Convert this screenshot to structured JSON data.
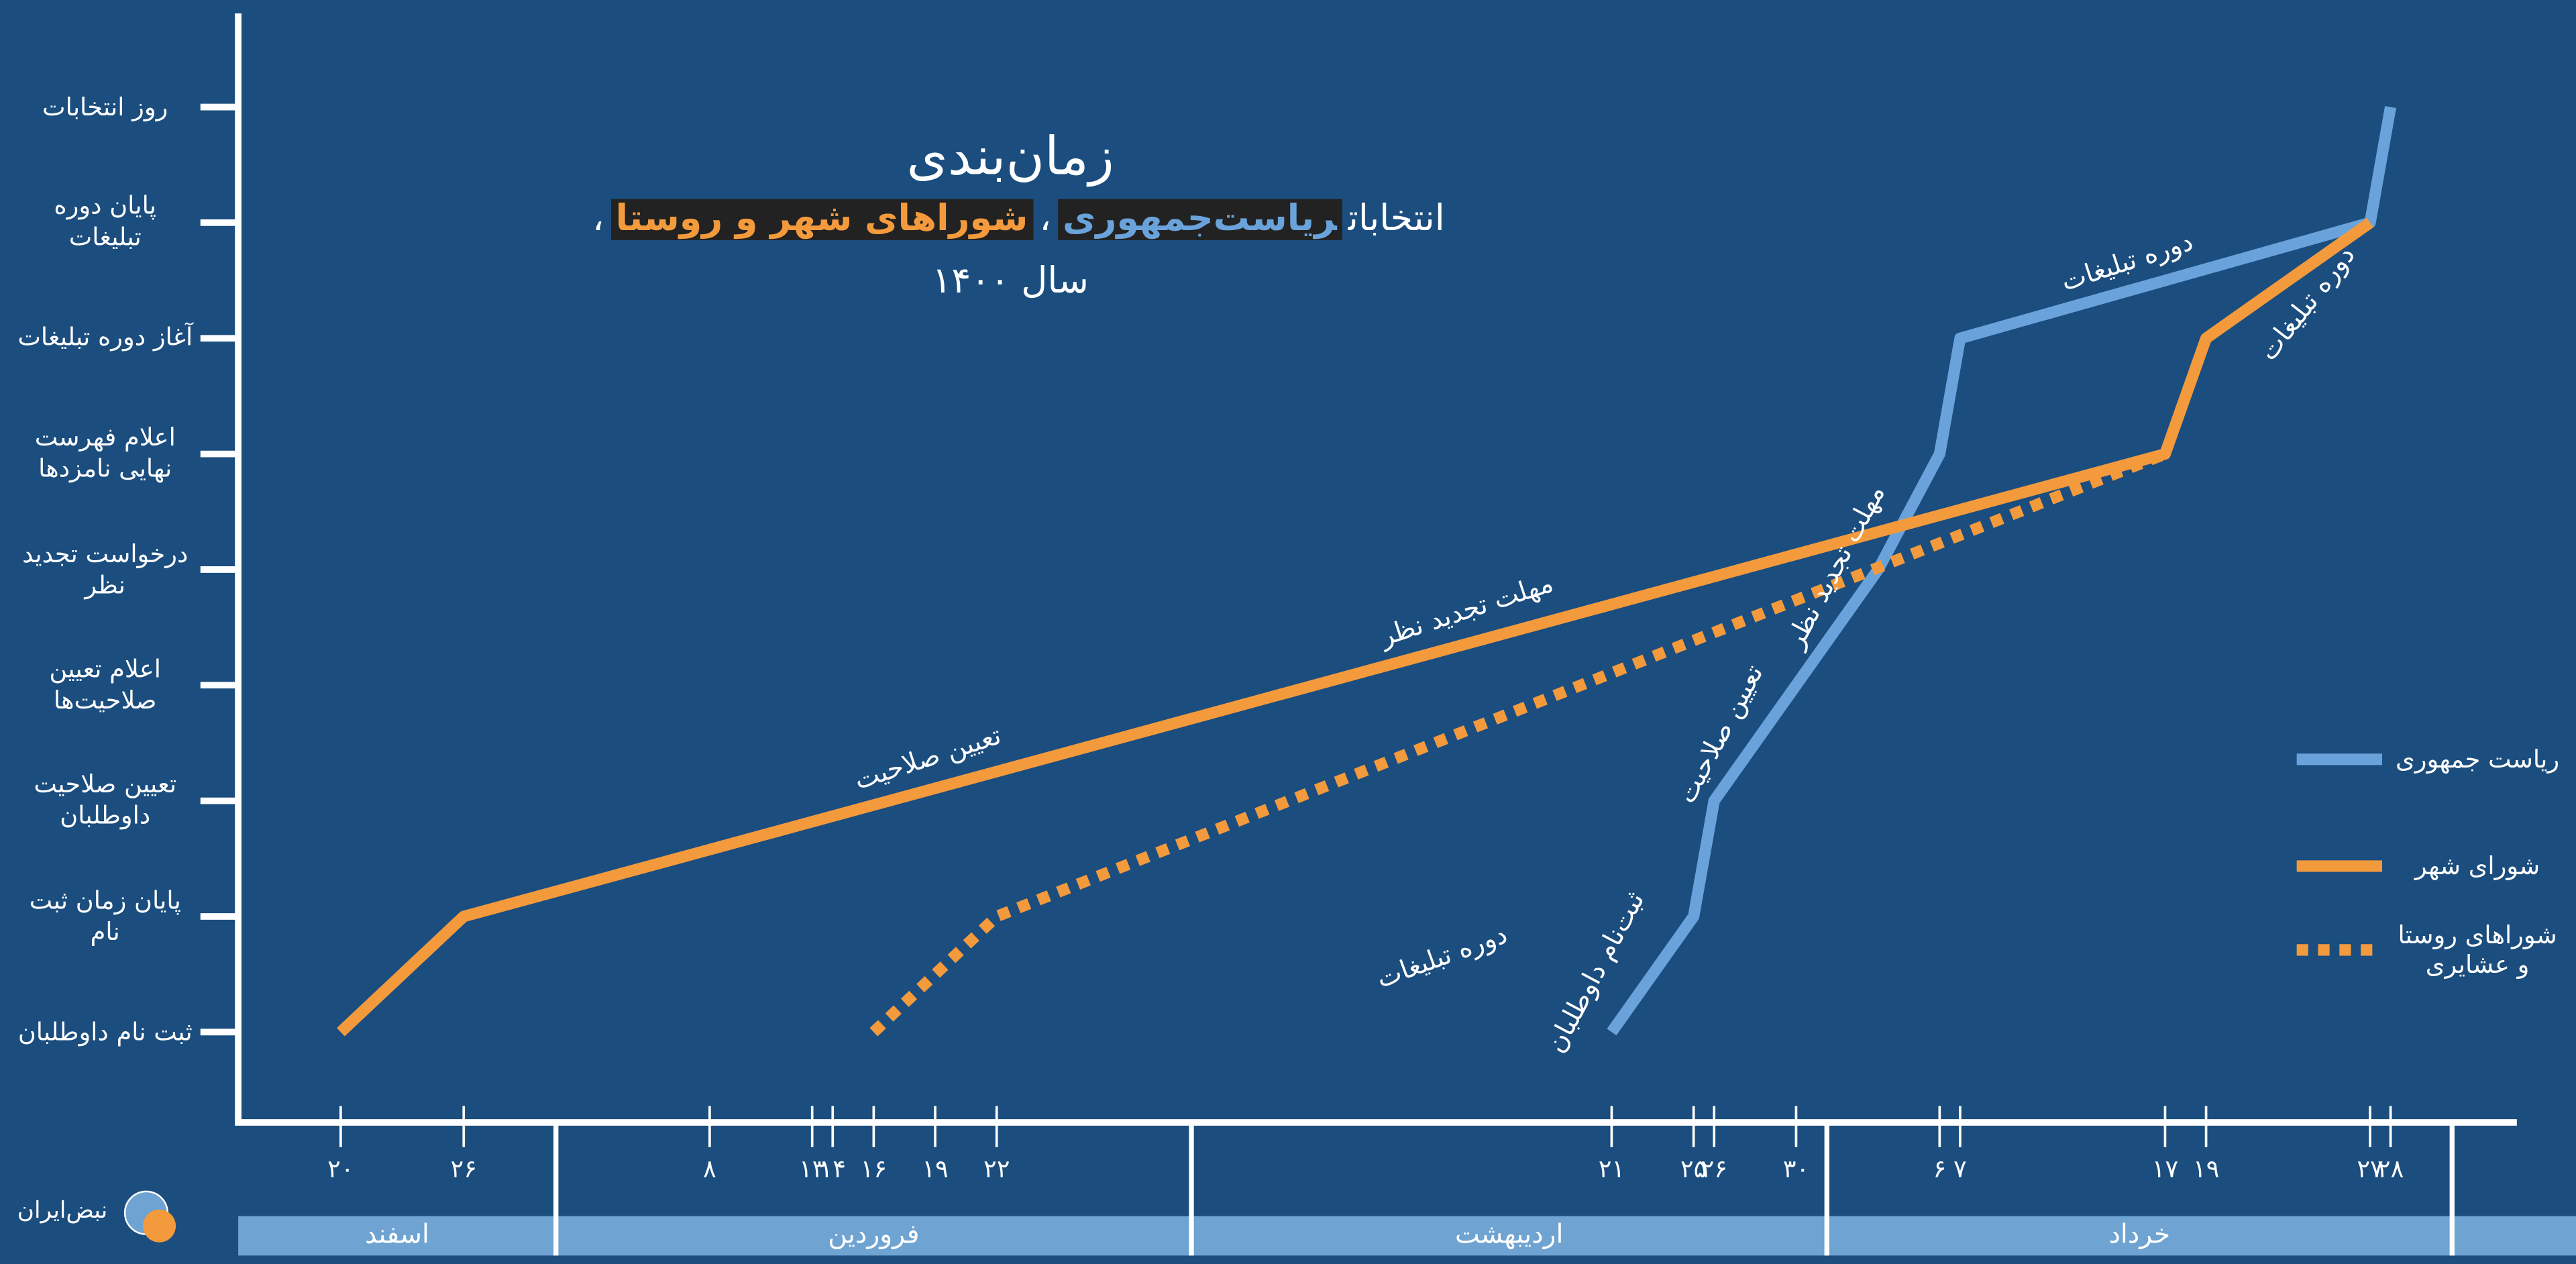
{
  "chart_data": {
    "type": "line",
    "title": "زمان‌بندی",
    "subtitle": [
      {
        "text": "انتخابات"
      },
      {
        "text": "ریاست‌جمهوری",
        "color": "#6aa3db"
      },
      {
        "text": "،"
      },
      {
        "text": "شوراهای شهر و روستا",
        "color": "#f39a3d"
      },
      {
        "text": "،"
      }
    ],
    "subtitle2": "سال ۱۴۰۰",
    "y_categories": [
      "ثبت نام داوطلبان",
      "پایان زمان ثبت نام",
      "تعیین صلاحیت داوطلبان",
      "اعلام تعیین صلاحیت‌ها",
      "درخواست تجدید نظر",
      "اعلام فهرست نهایی نامزدها",
      "آغاز دوره تبلیغات",
      "پایان دوره تبلیغات",
      "روز انتخابات"
    ],
    "xlim": [
      15,
      126
    ],
    "xticks": [
      {
        "value": 20,
        "label": "۲۰"
      },
      {
        "value": 26,
        "label": "۲۶"
      },
      {
        "value": 38,
        "label": "۸"
      },
      {
        "value": 43,
        "label": "۱۳"
      },
      {
        "value": 44,
        "label": "۱۴"
      },
      {
        "value": 46,
        "label": "۱۶"
      },
      {
        "value": 49,
        "label": "۱۹"
      },
      {
        "value": 52,
        "label": "۲۲"
      },
      {
        "value": 82,
        "label": "۲۱"
      },
      {
        "value": 86,
        "label": "۲۵"
      },
      {
        "value": 87,
        "label": "۲۶"
      },
      {
        "value": 91,
        "label": "۳۰"
      },
      {
        "value": 98,
        "label": "۶"
      },
      {
        "value": 99,
        "label": "۷"
      },
      {
        "value": 109,
        "label": "۱۷"
      },
      {
        "value": 111,
        "label": "۱۹"
      },
      {
        "value": 119,
        "label": "۲۷"
      },
      {
        "value": 120,
        "label": "۲۸"
      }
    ],
    "months": [
      {
        "label": "اسفند",
        "range": [
          15,
          30.5
        ]
      },
      {
        "label": "فروردین",
        "range": [
          30.5,
          61.5
        ]
      },
      {
        "label": "اردیبهشت",
        "range": [
          61.5,
          92.5
        ]
      },
      {
        "label": "خرداد",
        "range": [
          92.5,
          123
        ]
      }
    ],
    "series": [
      {
        "name": "ریاست جمهوری",
        "color": "#6aa3db",
        "dashed": false,
        "x": [
          82,
          86,
          87,
          91,
          95,
          98,
          99,
          119,
          120
        ],
        "values": [
          0,
          1,
          2,
          3,
          4,
          5,
          6,
          7,
          8
        ]
      },
      {
        "name": "شورای شهر",
        "color": "#f39a3d",
        "dashed": false,
        "x": [
          20,
          26,
          109,
          111,
          119
        ],
        "values": [
          0,
          1,
          5,
          6,
          7
        ]
      },
      {
        "name": "شوراهای روستا و عشایری",
        "color": "#f39a3d",
        "dashed": true,
        "x": [
          46,
          52,
          109
        ],
        "values": [
          0,
          1,
          5
        ]
      }
    ],
    "annotations": [
      "دوره تبلیغات",
      "دوره تبلیغات",
      "مهلت تجدید نظر",
      "تعیین صلاحیت",
      "دوره تبلیغات",
      "ثبت‌نام داوطلبان",
      "تعیین صلاحیت",
      "مهلت تجدید نظر"
    ],
    "brand": "نبض‌ایران"
  }
}
